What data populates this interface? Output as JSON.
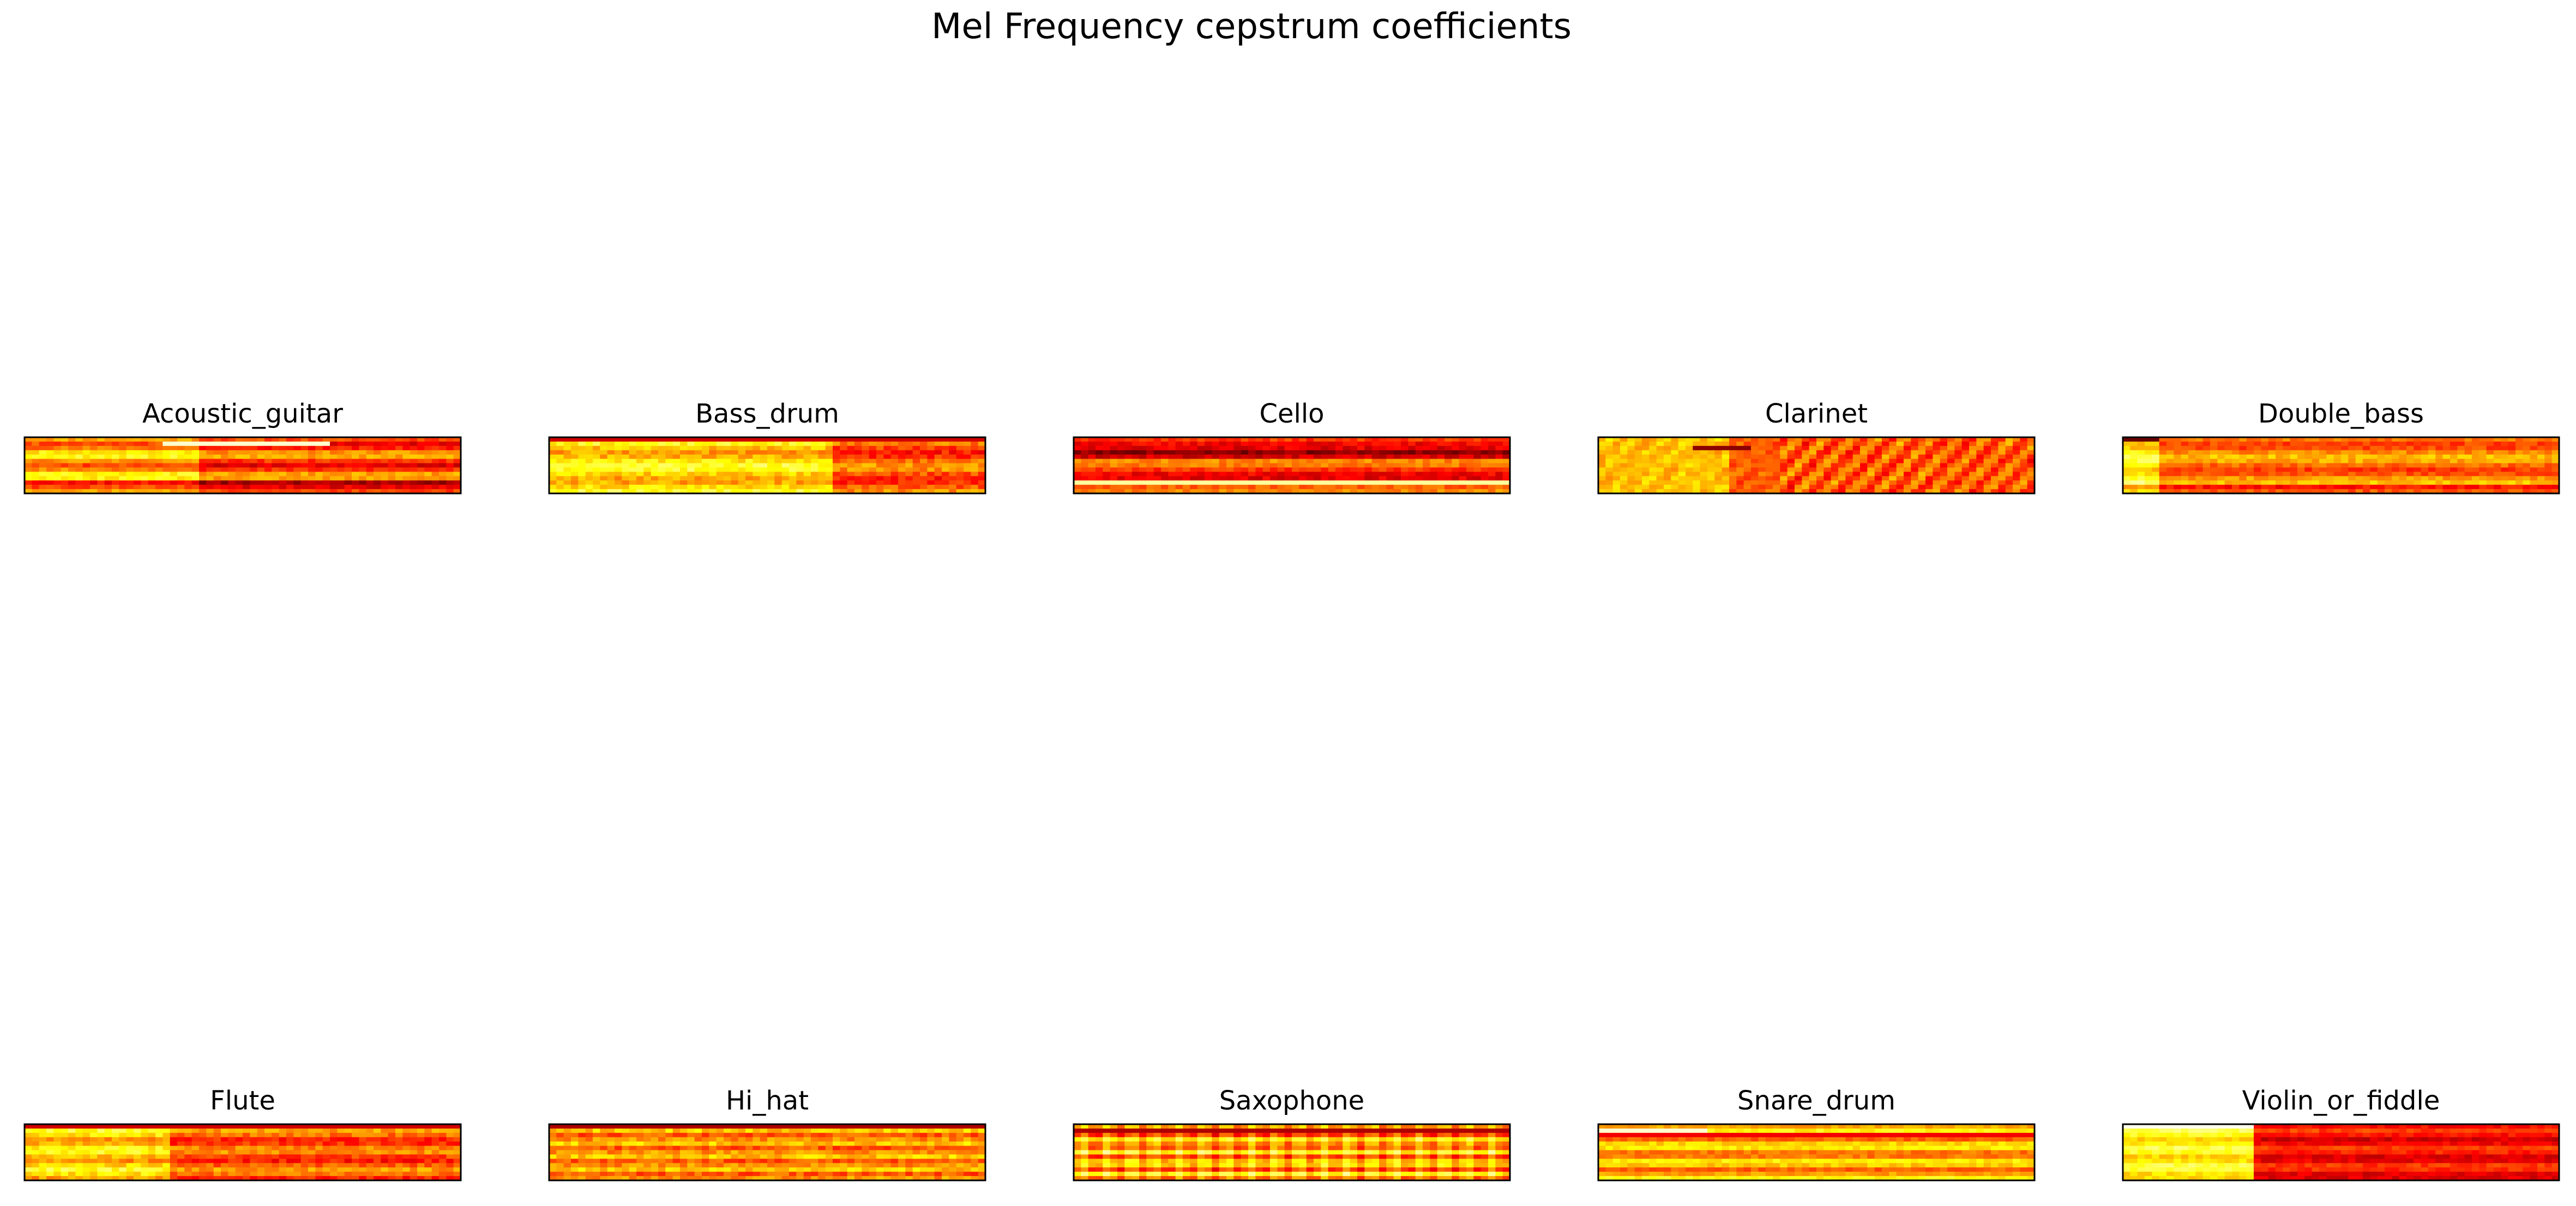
{
  "figure": {
    "title": "Mel Frequency cepstrum coefficients"
  },
  "chart_data": [
    {
      "type": "heatmap",
      "title": "Acoustic_guitar",
      "colormap": "hot",
      "rows": 13,
      "cols": 60,
      "seed": 11,
      "profile": "guitar"
    },
    {
      "type": "heatmap",
      "title": "Bass_drum",
      "colormap": "hot",
      "rows": 13,
      "cols": 60,
      "seed": 23,
      "profile": "bass_drum"
    },
    {
      "type": "heatmap",
      "title": "Cello",
      "colormap": "hot",
      "rows": 13,
      "cols": 60,
      "seed": 37,
      "profile": "cello"
    },
    {
      "type": "heatmap",
      "title": "Clarinet",
      "colormap": "hot",
      "rows": 13,
      "cols": 60,
      "seed": 41,
      "profile": "clarinet"
    },
    {
      "type": "heatmap",
      "title": "Double_bass",
      "colormap": "hot",
      "rows": 13,
      "cols": 60,
      "seed": 53,
      "profile": "double_bass"
    },
    {
      "type": "heatmap",
      "title": "Flute",
      "colormap": "hot",
      "rows": 13,
      "cols": 60,
      "seed": 67,
      "profile": "flute"
    },
    {
      "type": "heatmap",
      "title": "Hi_hat",
      "colormap": "hot",
      "rows": 13,
      "cols": 60,
      "seed": 71,
      "profile": "hi_hat"
    },
    {
      "type": "heatmap",
      "title": "Saxophone",
      "colormap": "hot",
      "rows": 13,
      "cols": 60,
      "seed": 83,
      "profile": "saxophone"
    },
    {
      "type": "heatmap",
      "title": "Snare_drum",
      "colormap": "hot",
      "rows": 13,
      "cols": 60,
      "seed": 97,
      "profile": "snare"
    },
    {
      "type": "heatmap",
      "title": "Violin_or_fiddle",
      "colormap": "hot",
      "rows": 13,
      "cols": 60,
      "seed": 101,
      "profile": "violin"
    }
  ]
}
